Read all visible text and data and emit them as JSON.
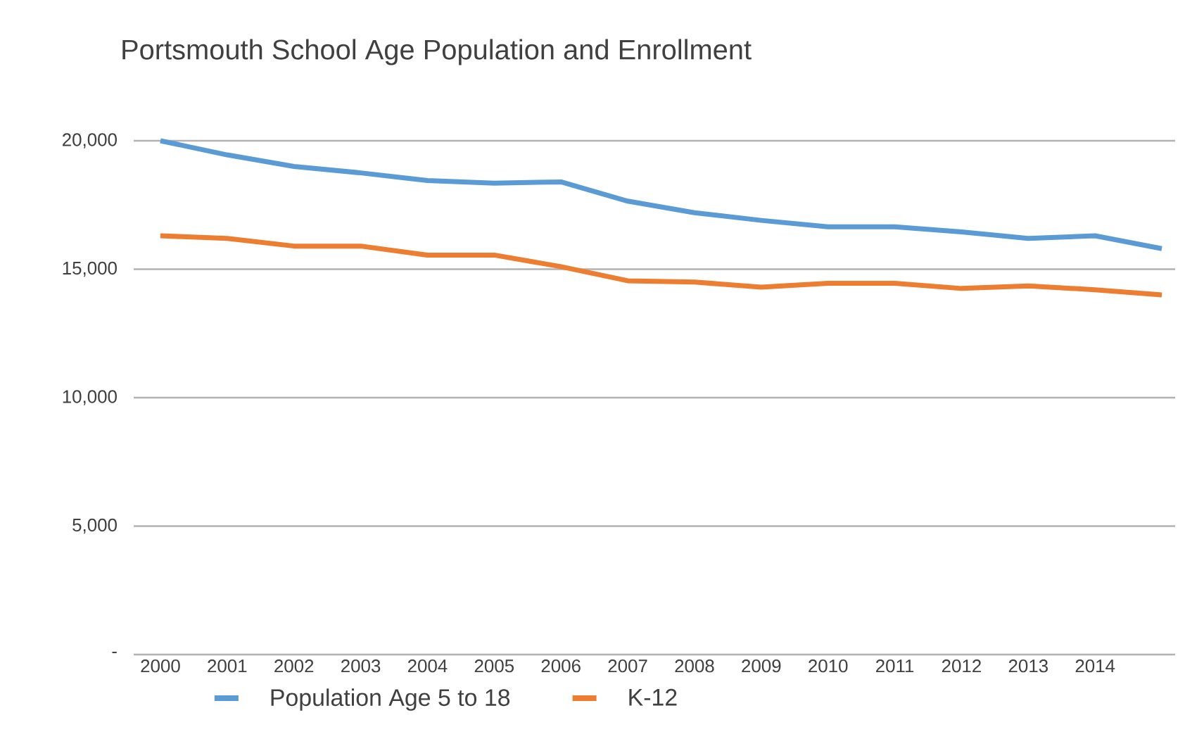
{
  "chart_data": {
    "type": "line",
    "title": "Portsmouth School Age Population and Enrollment",
    "categories": [
      "2000",
      "2001",
      "2002",
      "2003",
      "2004",
      "2005",
      "2006",
      "2007",
      "2008",
      "2009",
      "2010",
      "2011",
      "2012",
      "2013",
      "2014",
      null
    ],
    "series": [
      {
        "name": "Population Age 5 to 18",
        "color": "#5b9bd5",
        "values": [
          20000,
          19450,
          19000,
          18750,
          18450,
          18350,
          18400,
          17650,
          17200,
          16900,
          16650,
          16650,
          16450,
          16200,
          16300,
          15800
        ]
      },
      {
        "name": "K-12",
        "color": "#ed7d31",
        "values": [
          16300,
          16200,
          15900,
          15900,
          15550,
          15550,
          15100,
          14550,
          14500,
          14300,
          14450,
          14450,
          14250,
          14350,
          14200,
          14000
        ]
      }
    ],
    "ylim": [
      0,
      20000
    ],
    "yticks": [
      {
        "value": 0,
        "label": "-"
      },
      {
        "value": 5000,
        "label": "5,000"
      },
      {
        "value": 10000,
        "label": "10,000"
      },
      {
        "value": 15000,
        "label": "15,000"
      },
      {
        "value": 20000,
        "label": "20,000"
      }
    ],
    "grid": "y",
    "legend": "bottom",
    "marker": "none",
    "line_style": "solid"
  }
}
